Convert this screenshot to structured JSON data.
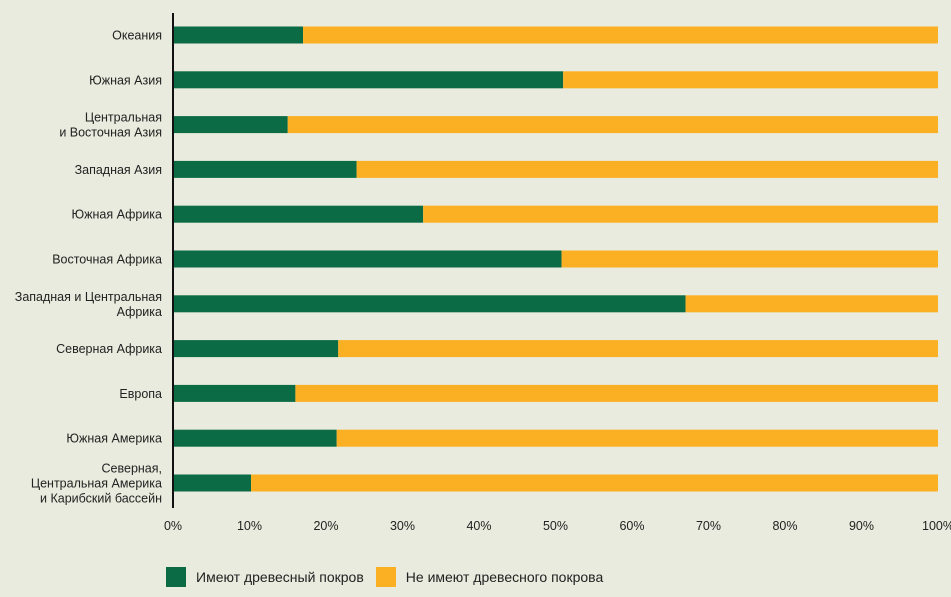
{
  "chart_data": {
    "type": "bar",
    "orientation": "horizontal",
    "stacked": true,
    "categories": [
      [
        "Океания"
      ],
      [
        "Южная Азия"
      ],
      [
        "Центральная",
        "и Восточная Азия"
      ],
      [
        "Западная Азия"
      ],
      [
        "Южная Африка"
      ],
      [
        "Восточная Африка"
      ],
      [
        "Западная и Центральная",
        "Африка"
      ],
      [
        "Северная Африка"
      ],
      [
        "Европа"
      ],
      [
        "Южная Америка"
      ],
      [
        "Северная,",
        "Центральная Америка",
        "и Карибский бассейн"
      ]
    ],
    "series": [
      {
        "name": "Имеют древесный покров",
        "color": "#0b6b45",
        "values": [
          17,
          51,
          15,
          24,
          32.7,
          50.8,
          67,
          21.6,
          16,
          21.4,
          10.2
        ]
      },
      {
        "name": "Не имеют древесного покрова",
        "color": "#fbb024",
        "values": [
          83,
          49,
          85,
          76,
          67.3,
          49.2,
          33,
          78.4,
          84,
          78.6,
          89.8
        ]
      }
    ],
    "xlim": [
      0,
      100
    ],
    "ticks": [
      "0%",
      "10%",
      "20%",
      "30%",
      "40%",
      "50%",
      "60%",
      "70%",
      "80%",
      "90%",
      "100%"
    ],
    "legend_position": "bottom-left",
    "grid": false
  }
}
